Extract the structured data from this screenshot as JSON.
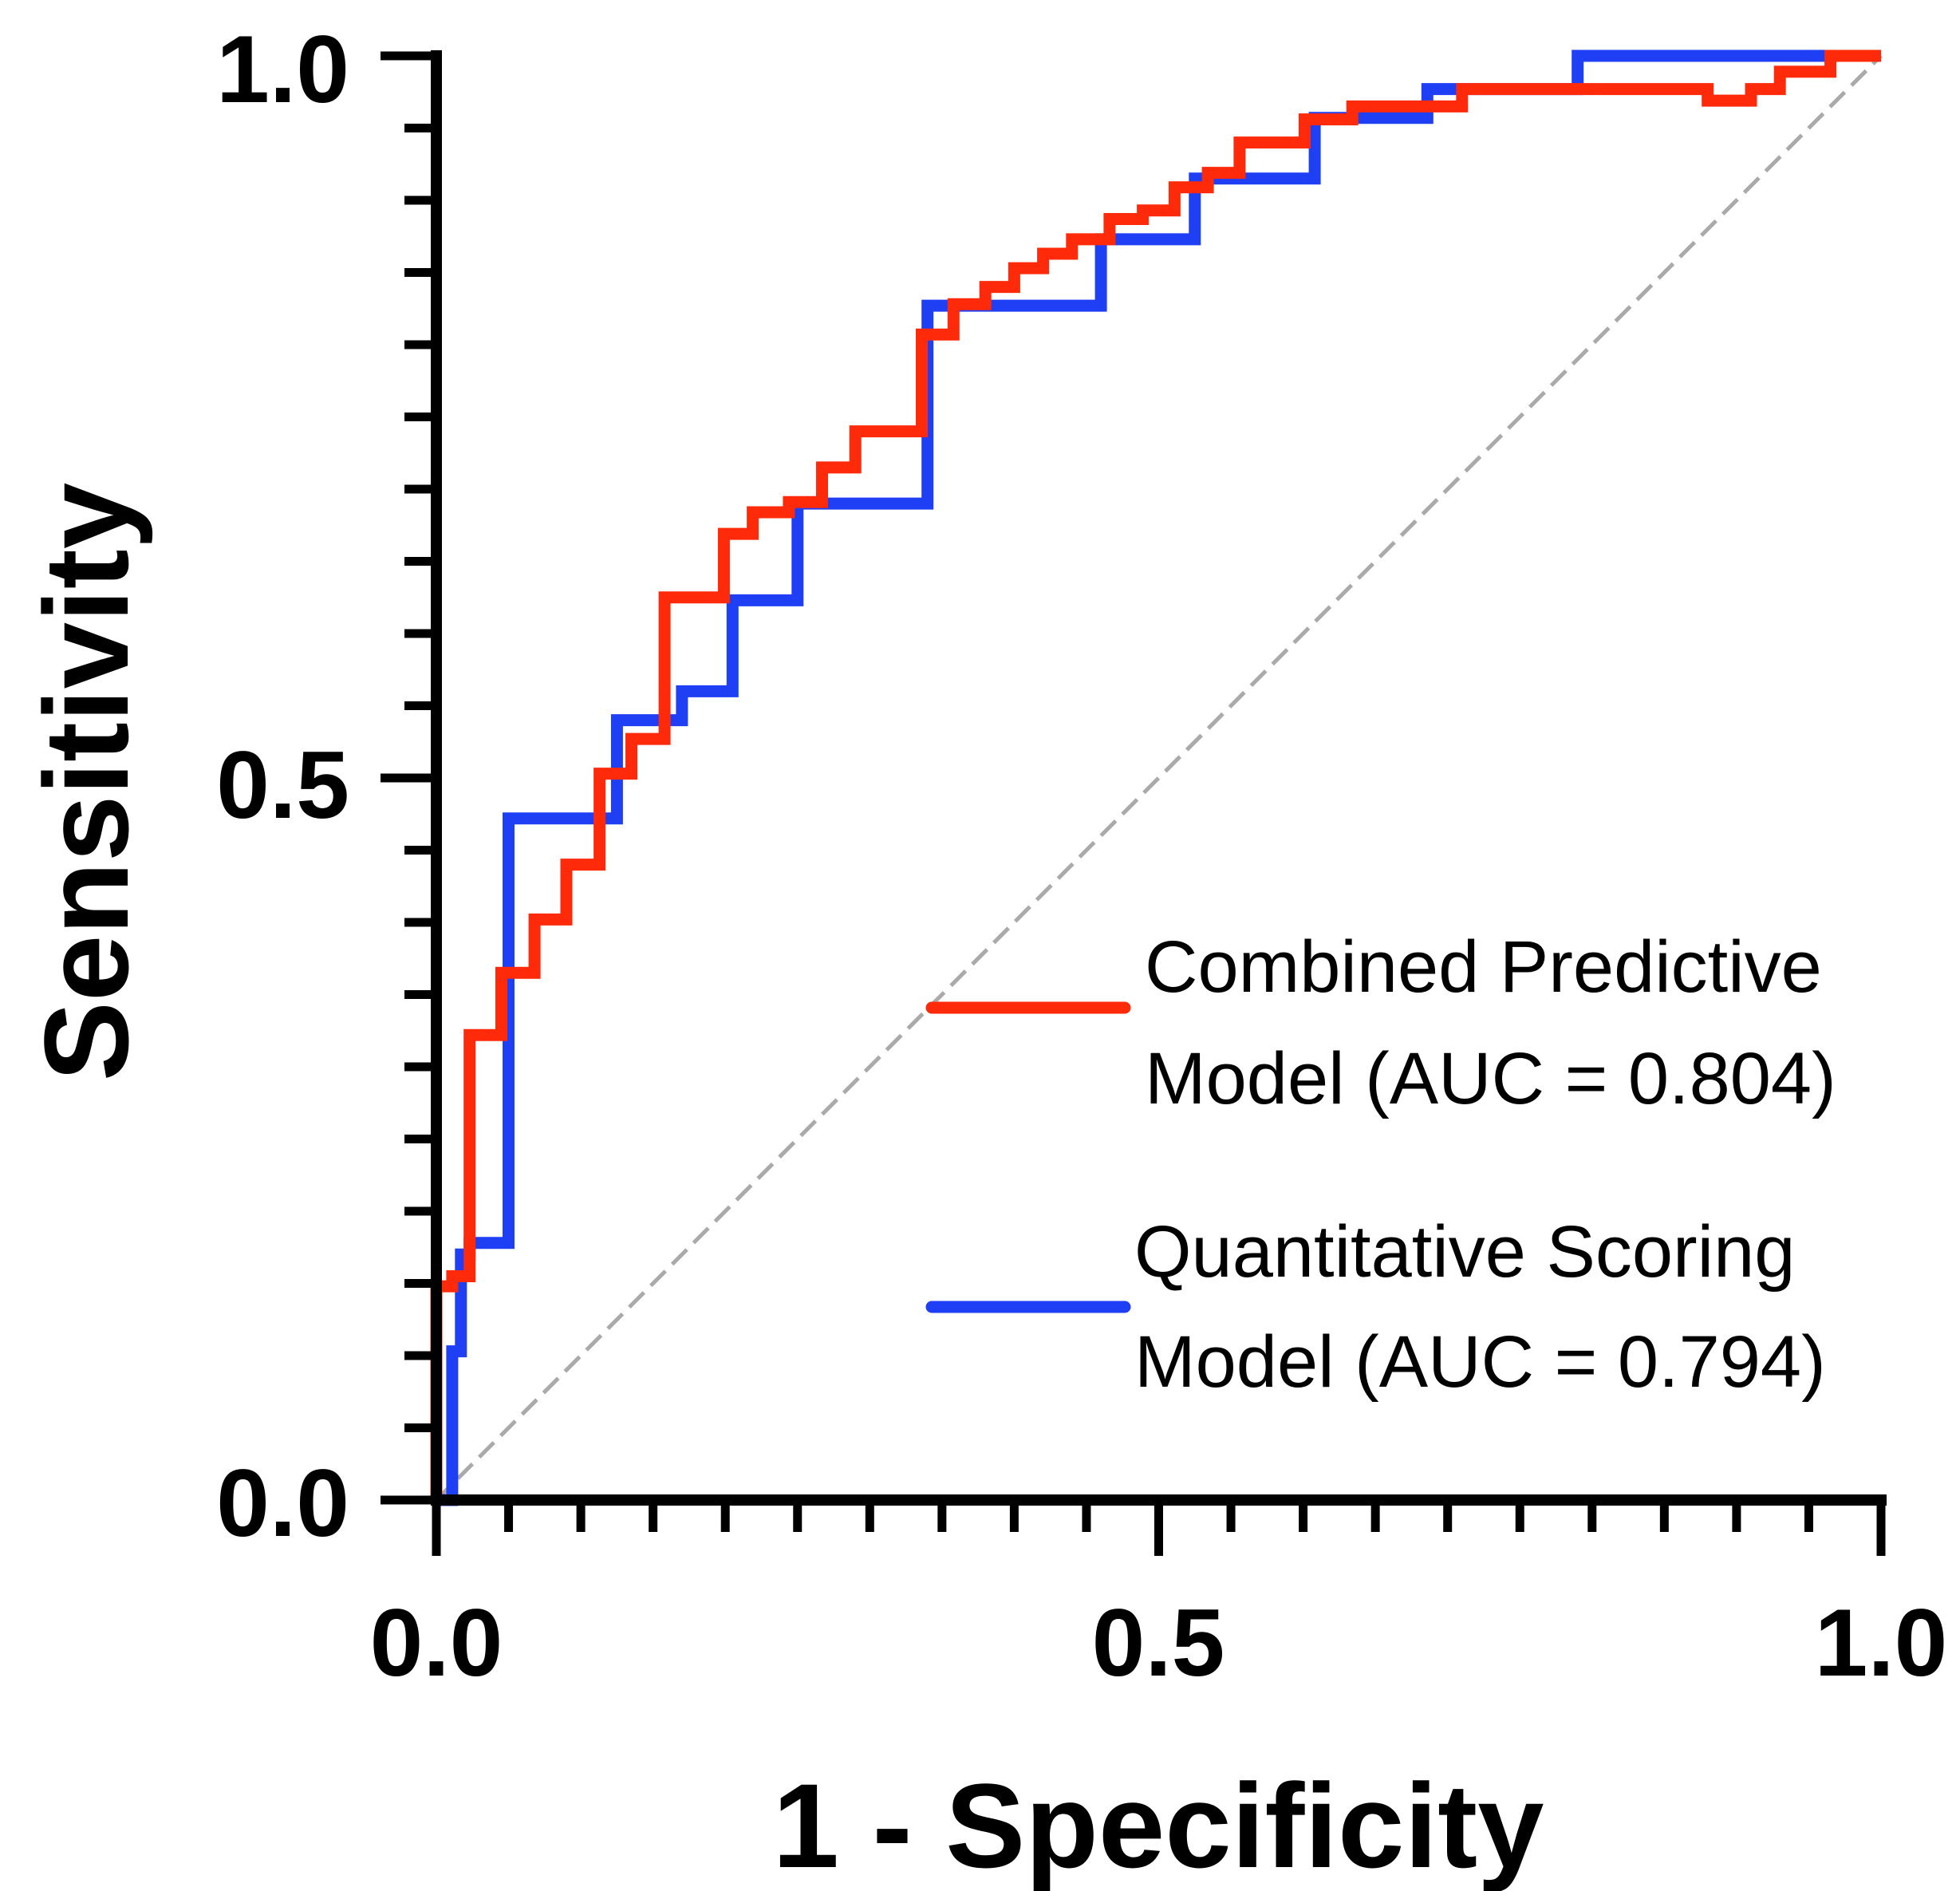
{
  "chart_data": {
    "type": "line",
    "title": "",
    "xlabel": "1 - Specificity",
    "ylabel": "Sensitivity",
    "xlim": [
      0,
      1
    ],
    "ylim": [
      0,
      1
    ],
    "x_ticks": [
      "0.0",
      "0.5",
      "1.0"
    ],
    "y_ticks": [
      "0.0",
      "0.5",
      "1.0"
    ],
    "x_tick_values": [
      0,
      0.5,
      1
    ],
    "y_tick_values": [
      0,
      0.5,
      1
    ],
    "minor_tick_step": 0.05,
    "grid": false,
    "legend_position": "bottom-right",
    "reference_line": {
      "name": "Chance",
      "x": [
        0,
        1
      ],
      "y": [
        0,
        1
      ],
      "color": "#aaaaaa",
      "style": "dashed"
    },
    "series": [
      {
        "name": "Combined Predictive Model (AUC = 0.804)",
        "legend_lines": [
          "Combined Predictive",
          "Model (AUC = 0.804)"
        ],
        "auc": 0.804,
        "color": "#ff2a0a",
        "step": true,
        "points": [
          [
            0,
            0
          ],
          [
            0,
            0.148
          ],
          [
            0.011,
            0.148
          ],
          [
            0.011,
            0.155
          ],
          [
            0.023,
            0.155
          ],
          [
            0.023,
            0.322
          ],
          [
            0.045,
            0.322
          ],
          [
            0.045,
            0.365
          ],
          [
            0.068,
            0.365
          ],
          [
            0.068,
            0.402
          ],
          [
            0.09,
            0.402
          ],
          [
            0.09,
            0.44
          ],
          [
            0.113,
            0.44
          ],
          [
            0.113,
            0.503
          ],
          [
            0.135,
            0.503
          ],
          [
            0.135,
            0.527
          ],
          [
            0.158,
            0.527
          ],
          [
            0.158,
            0.53
          ],
          [
            0.158,
            0.625
          ],
          [
            0.199,
            0.625
          ],
          [
            0.199,
            0.669
          ],
          [
            0.219,
            0.669
          ],
          [
            0.219,
            0.684
          ],
          [
            0.244,
            0.684
          ],
          [
            0.244,
            0.691
          ],
          [
            0.267,
            0.691
          ],
          [
            0.267,
            0.715
          ],
          [
            0.29,
            0.715
          ],
          [
            0.29,
            0.74
          ],
          [
            0.336,
            0.74
          ],
          [
            0.336,
            0.807
          ],
          [
            0.358,
            0.807
          ],
          [
            0.358,
            0.828
          ],
          [
            0.38,
            0.828
          ],
          [
            0.38,
            0.84
          ],
          [
            0.4,
            0.84
          ],
          [
            0.4,
            0.853
          ],
          [
            0.42,
            0.853
          ],
          [
            0.42,
            0.863
          ],
          [
            0.44,
            0.863
          ],
          [
            0.44,
            0.873
          ],
          [
            0.466,
            0.873
          ],
          [
            0.466,
            0.887
          ],
          [
            0.489,
            0.887
          ],
          [
            0.489,
            0.893
          ],
          [
            0.511,
            0.893
          ],
          [
            0.511,
            0.9
          ],
          [
            0.511,
            0.909
          ],
          [
            0.534,
            0.909
          ],
          [
            0.534,
            0.919
          ],
          [
            0.556,
            0.919
          ],
          [
            0.556,
            0.923
          ],
          [
            0.556,
            0.94
          ],
          [
            0.601,
            0.94
          ],
          [
            0.601,
            0.949
          ],
          [
            0.601,
            0.956
          ],
          [
            0.634,
            0.956
          ],
          [
            0.634,
            0.965
          ],
          [
            0.71,
            0.965
          ],
          [
            0.71,
            0.977
          ],
          [
            0.88,
            0.977
          ],
          [
            0.88,
            0.969
          ],
          [
            0.91,
            0.969
          ],
          [
            0.91,
            0.977
          ],
          [
            0.93,
            0.977
          ],
          [
            0.93,
            0.989
          ],
          [
            0.965,
            0.989
          ],
          [
            0.965,
            1
          ],
          [
            1,
            1
          ]
        ]
      },
      {
        "name": "Quantitative Scoring Model (AUC = 0.794)",
        "legend_lines": [
          "Quantitative Scoring",
          "Model (AUC = 0.794)"
        ],
        "auc": 0.794,
        "color": "#1f3ff5",
        "step": true,
        "points": [
          [
            0,
            0
          ],
          [
            0.011,
            0
          ],
          [
            0.011,
            0.103
          ],
          [
            0.017,
            0.103
          ],
          [
            0.017,
            0.17
          ],
          [
            0.023,
            0.17
          ],
          [
            0.023,
            0.178
          ],
          [
            0.05,
            0.178
          ],
          [
            0.05,
            0.472
          ],
          [
            0.125,
            0.472
          ],
          [
            0.125,
            0.54
          ],
          [
            0.17,
            0.54
          ],
          [
            0.17,
            0.56
          ],
          [
            0.205,
            0.56
          ],
          [
            0.205,
            0.623
          ],
          [
            0.25,
            0.623
          ],
          [
            0.25,
            0.69
          ],
          [
            0.34,
            0.69
          ],
          [
            0.34,
            0.827
          ],
          [
            0.46,
            0.827
          ],
          [
            0.46,
            0.873
          ],
          [
            0.525,
            0.873
          ],
          [
            0.525,
            0.915
          ],
          [
            0.608,
            0.915
          ],
          [
            0.608,
            0.957
          ],
          [
            0.686,
            0.957
          ],
          [
            0.686,
            0.977
          ],
          [
            0.79,
            0.977
          ],
          [
            0.79,
            1
          ],
          [
            1,
            1
          ]
        ]
      }
    ]
  }
}
